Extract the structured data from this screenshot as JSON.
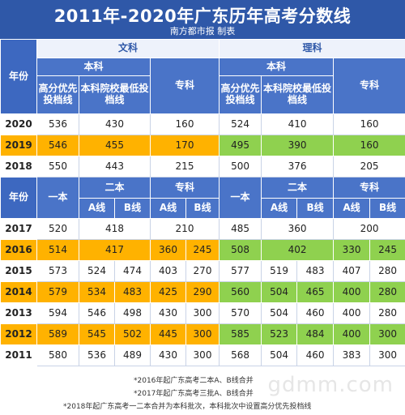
{
  "title": "2011年-2020年广东历年高考分数线",
  "subtitle": "南方都市报 制表",
  "header": {
    "year": "年份",
    "wenke": "文科",
    "like": "理科",
    "benke": "本科",
    "zhuanke": "专科",
    "gaofen": "高分优先投档线",
    "benke_yuanxiao": "本科院校最低投档线",
    "yiben": "一本",
    "erben": "二本",
    "a_line": "A线",
    "b_line": "B线"
  },
  "rows_top": [
    {
      "year": "2020",
      "w_gaofen": "536",
      "w_benke": "430",
      "w_zhuan": "160",
      "l_gaofen": "524",
      "l_benke": "410",
      "l_zhuan": "160",
      "hl": false
    },
    {
      "year": "2019",
      "w_gaofen": "546",
      "w_benke": "455",
      "w_zhuan": "170",
      "l_gaofen": "495",
      "l_benke": "390",
      "l_zhuan": "160",
      "hl": true
    },
    {
      "year": "2018",
      "w_gaofen": "550",
      "w_benke": "443",
      "w_zhuan": "215",
      "l_gaofen": "500",
      "l_benke": "376",
      "l_zhuan": "205",
      "hl": false
    }
  ],
  "row_2017": {
    "year": "2017",
    "w_yi": "520",
    "w_er": "418",
    "w_zhuan": "210",
    "l_yi": "485",
    "l_er": "360",
    "l_zhuan": "200"
  },
  "rows_bottom": [
    {
      "year": "2016",
      "w_yi": "514",
      "w_era": "",
      "w_erb": "417",
      "w_za": "360",
      "w_zb": "245",
      "l_yi": "508",
      "l_era": "",
      "l_erb": "402",
      "l_za": "330",
      "l_zb": "245",
      "hl": true,
      "merged_er": true
    },
    {
      "year": "2015",
      "w_yi": "573",
      "w_era": "524",
      "w_erb": "474",
      "w_za": "403",
      "w_zb": "270",
      "l_yi": "577",
      "l_era": "519",
      "l_erb": "483",
      "l_za": "407",
      "l_zb": "280",
      "hl": false
    },
    {
      "year": "2014",
      "w_yi": "579",
      "w_era": "534",
      "w_erb": "483",
      "w_za": "425",
      "w_zb": "290",
      "l_yi": "560",
      "l_era": "504",
      "l_erb": "465",
      "l_za": "400",
      "l_zb": "280",
      "hl": true
    },
    {
      "year": "2013",
      "w_yi": "594",
      "w_era": "546",
      "w_erb": "498",
      "w_za": "430",
      "w_zb": "300",
      "l_yi": "570",
      "l_era": "504",
      "l_erb": "460",
      "l_za": "400",
      "l_zb": "280",
      "hl": false
    },
    {
      "year": "2012",
      "w_yi": "589",
      "w_era": "545",
      "w_erb": "502",
      "w_za": "445",
      "w_zb": "300",
      "l_yi": "585",
      "l_era": "523",
      "l_erb": "484",
      "l_za": "400",
      "l_zb": "300",
      "hl": true
    },
    {
      "year": "2011",
      "w_yi": "580",
      "w_era": "536",
      "w_erb": "489",
      "w_za": "430",
      "w_zb": "300",
      "l_yi": "568",
      "l_era": "504",
      "l_erb": "460",
      "l_za": "383",
      "l_zb": "300",
      "hl": false
    }
  ],
  "notes": [
    "*2016年起广东高考二本A、B线合并",
    "*2017年起广东高考三批A、B线合并",
    "*2018年起广东高考一二本合并为本科批次，本科批次中设置高分优先投档线"
  ],
  "watermark": "gdmm.com",
  "colors": {
    "title_bg": "#2f58a8",
    "header_bg": "#3d68c0",
    "wenke_highlight": "#ffb200",
    "like_highlight": "#8fd14f"
  }
}
